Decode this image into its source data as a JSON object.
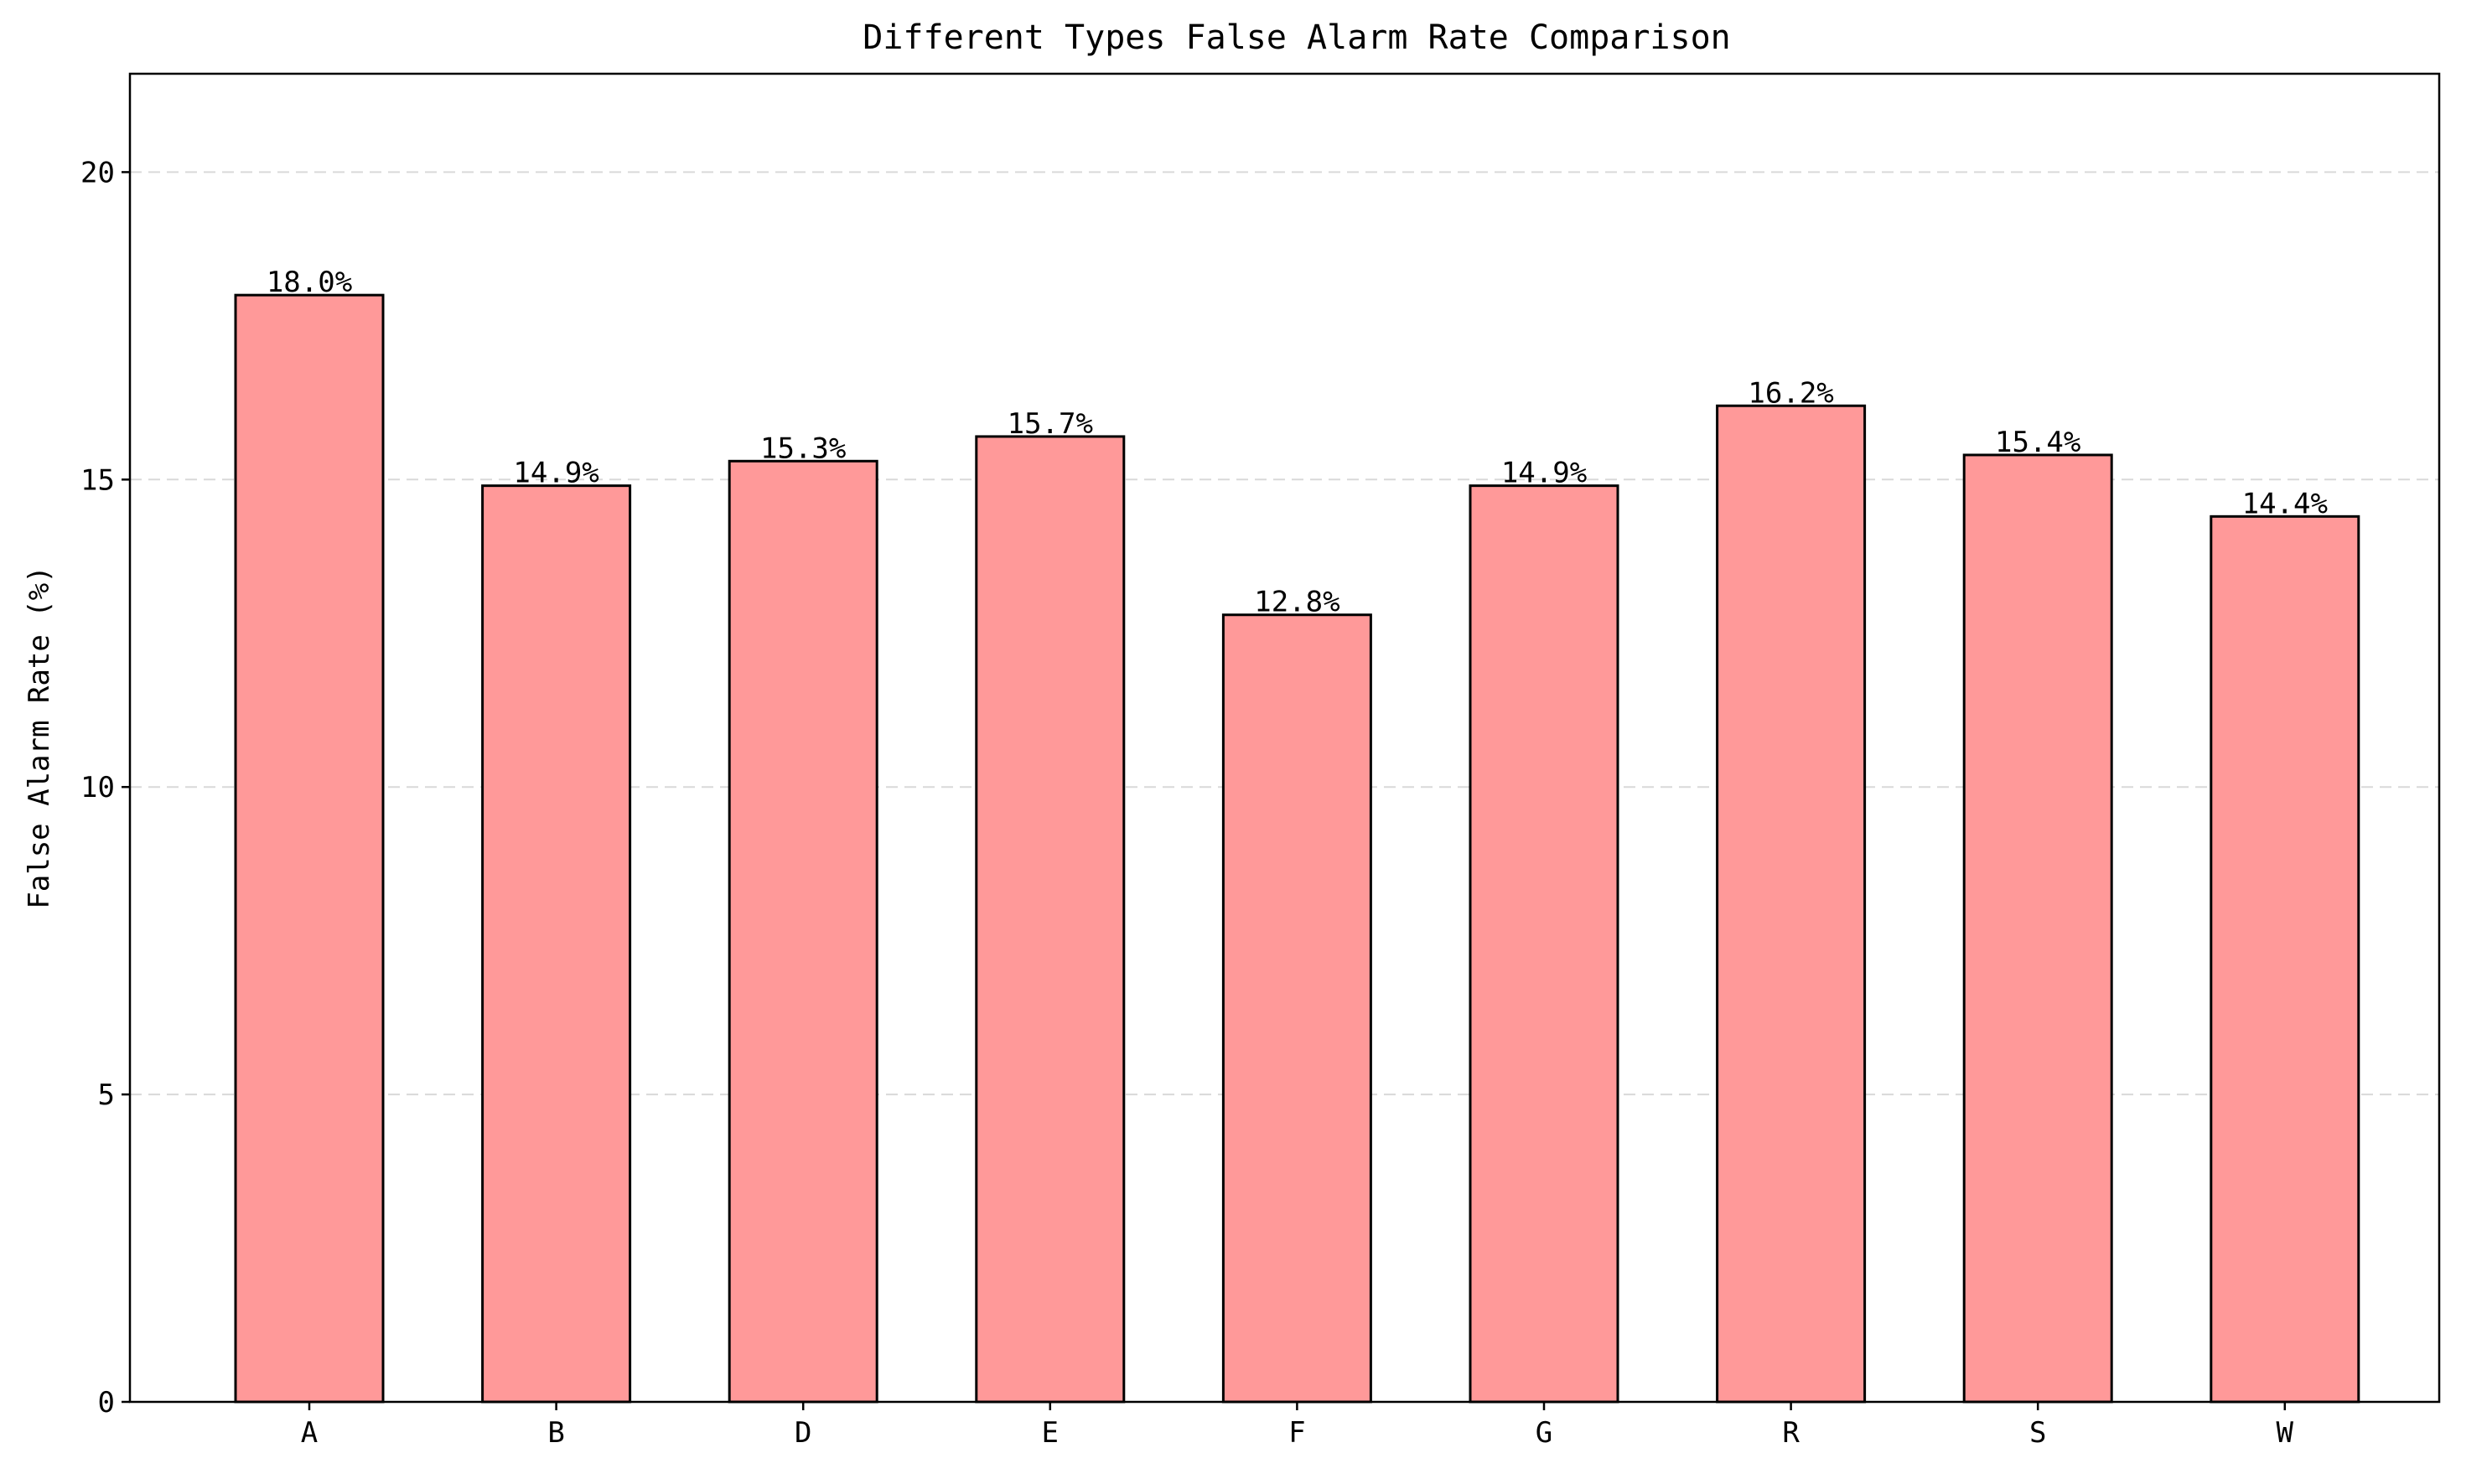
{
  "chart_data": {
    "type": "bar",
    "title": "Different Types False Alarm Rate Comparison",
    "xlabel": "",
    "ylabel": "False Alarm Rate (%)",
    "categories": [
      "A",
      "B",
      "D",
      "E",
      "F",
      "G",
      "R",
      "S",
      "W"
    ],
    "values": [
      18.0,
      14.9,
      15.3,
      15.7,
      12.8,
      14.9,
      16.2,
      15.4,
      14.4
    ],
    "data_labels": [
      "18.0%",
      "14.9%",
      "15.3%",
      "15.7%",
      "12.8%",
      "14.9%",
      "16.2%",
      "15.4%",
      "14.4%"
    ],
    "yticks": [
      0,
      5,
      10,
      15,
      20
    ],
    "ylim": [
      0,
      21.6
    ],
    "grid": "y-dashed",
    "legend": "none",
    "bar_color": "#ff9999",
    "edge_color": "#000000"
  }
}
